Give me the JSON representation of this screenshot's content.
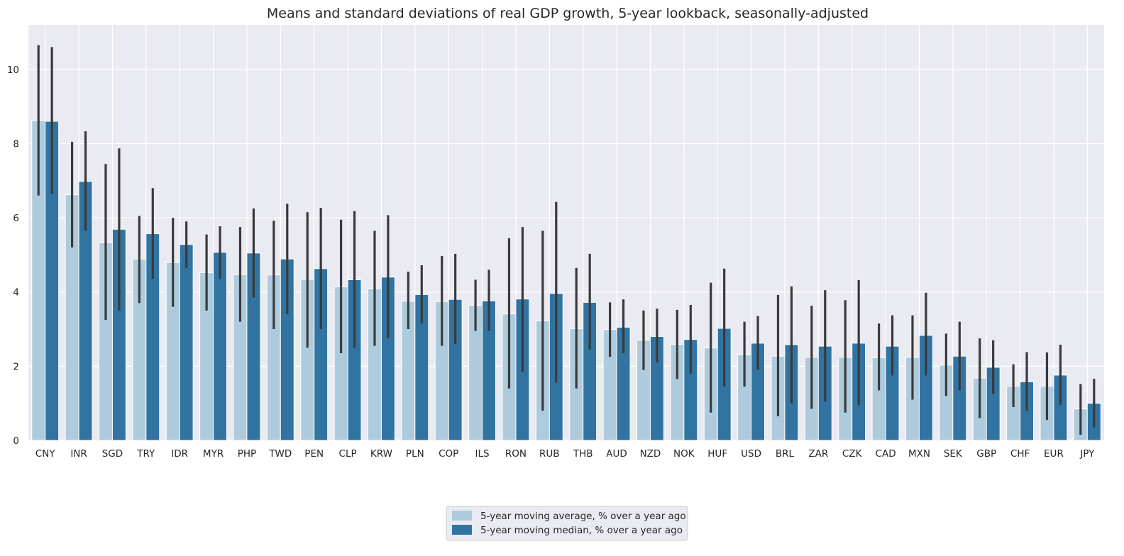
{
  "chart_data": {
    "type": "bar",
    "title": "Means and standard deviations of real GDP growth, 5-year lookback, seasonally-adjusted",
    "xlabel": "",
    "ylabel": "",
    "ylim": [
      0,
      11.2
    ],
    "yticks": [
      0,
      2,
      4,
      6,
      8,
      10
    ],
    "grid": true,
    "legend_position": "bottom-center",
    "categories": [
      "CNY",
      "INR",
      "SGD",
      "TRY",
      "IDR",
      "MYR",
      "PHP",
      "TWD",
      "PEN",
      "CLP",
      "KRW",
      "PLN",
      "COP",
      "ILS",
      "RON",
      "RUB",
      "THB",
      "AUD",
      "NZD",
      "NOK",
      "HUF",
      "USD",
      "BRL",
      "ZAR",
      "CZK",
      "CAD",
      "MXN",
      "SEK",
      "GBP",
      "CHF",
      "EUR",
      "JPY"
    ],
    "series": [
      {
        "name": "5-year moving average, % over a year ago",
        "color": "#aecbdd",
        "values": [
          8.62,
          6.62,
          5.33,
          4.89,
          4.79,
          4.52,
          4.47,
          4.46,
          4.34,
          4.14,
          4.09,
          3.75,
          3.74,
          3.64,
          3.41,
          3.22,
          3.01,
          2.99,
          2.7,
          2.59,
          2.49,
          2.31,
          2.27,
          2.24,
          2.24,
          2.23,
          2.24,
          2.03,
          1.68,
          1.46,
          1.46,
          0.85
        ],
        "err_low": [
          6.6,
          5.2,
          3.25,
          3.7,
          3.6,
          3.5,
          3.2,
          3.0,
          2.5,
          2.35,
          2.55,
          3.0,
          2.55,
          2.95,
          1.4,
          0.8,
          1.4,
          2.25,
          1.9,
          1.65,
          0.75,
          1.45,
          0.65,
          0.85,
          0.75,
          1.35,
          1.1,
          1.2,
          0.6,
          0.9,
          0.55,
          0.15
        ],
        "err_high": [
          10.65,
          8.05,
          7.45,
          6.05,
          6.0,
          5.55,
          5.75,
          5.92,
          6.15,
          5.95,
          5.65,
          4.55,
          4.97,
          4.33,
          5.45,
          5.65,
          4.65,
          3.72,
          3.5,
          3.52,
          4.25,
          3.2,
          3.92,
          3.63,
          3.78,
          3.15,
          3.37,
          2.88,
          2.75,
          2.05,
          2.37,
          1.52
        ]
      },
      {
        "name": "5-year moving median, % over a year ago",
        "color": "#3174a1",
        "values": [
          8.6,
          6.98,
          5.69,
          5.57,
          5.28,
          5.07,
          5.05,
          4.89,
          4.63,
          4.33,
          4.4,
          3.93,
          3.8,
          3.76,
          3.81,
          3.96,
          3.72,
          3.05,
          2.8,
          2.72,
          3.02,
          2.62,
          2.58,
          2.54,
          2.62,
          2.54,
          2.83,
          2.27,
          1.97,
          1.58,
          1.76,
          1.0
        ],
        "err_low": [
          6.65,
          5.65,
          3.5,
          4.35,
          4.65,
          4.35,
          3.85,
          3.4,
          3.0,
          2.5,
          2.75,
          3.15,
          2.6,
          2.95,
          1.85,
          1.55,
          2.45,
          2.35,
          2.1,
          1.8,
          1.45,
          1.9,
          1.0,
          1.05,
          0.95,
          1.75,
          1.75,
          1.35,
          1.25,
          0.8,
          0.95,
          0.35
        ],
        "err_high": [
          10.6,
          8.33,
          7.87,
          6.8,
          5.9,
          5.77,
          6.25,
          6.38,
          6.27,
          6.18,
          6.07,
          4.72,
          5.03,
          4.6,
          5.75,
          6.43,
          5.03,
          3.8,
          3.55,
          3.65,
          4.63,
          3.35,
          4.15,
          4.05,
          4.32,
          3.37,
          3.98,
          3.2,
          2.7,
          2.38,
          2.58,
          1.66
        ]
      }
    ]
  },
  "colors": {
    "plot_background": "#eaeaf2",
    "grid": "#ffffff",
    "error_bar": "#3a3a3a"
  }
}
